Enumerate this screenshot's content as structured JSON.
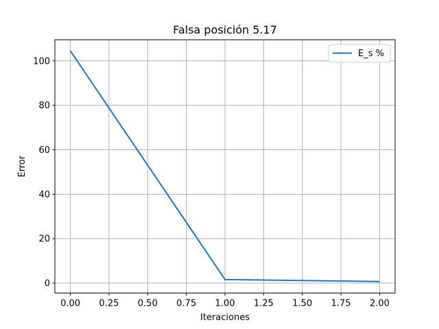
{
  "chart_data": {
    "type": "line",
    "title": "Falsa posición 5.17",
    "xlabel": "Iteraciones",
    "ylabel": "Error",
    "xlim": [
      -0.1,
      2.1
    ],
    "ylim": [
      -4.5,
      109.5
    ],
    "xticks": [
      0.0,
      0.25,
      0.5,
      0.75,
      1.0,
      1.25,
      1.5,
      1.75,
      2.0
    ],
    "xtick_labels": [
      "0.00",
      "0.25",
      "0.50",
      "0.75",
      "1.00",
      "1.25",
      "1.50",
      "1.75",
      "2.00"
    ],
    "yticks": [
      0,
      20,
      40,
      60,
      80,
      100
    ],
    "ytick_labels": [
      "0",
      "20",
      "40",
      "60",
      "80",
      "100"
    ],
    "grid": true,
    "legend_position": "top-right",
    "series": [
      {
        "name": "E_s %",
        "color": "#1f77b4",
        "x": [
          0,
          1,
          2
        ],
        "y": [
          104.5,
          1.6,
          0.7
        ]
      }
    ]
  }
}
